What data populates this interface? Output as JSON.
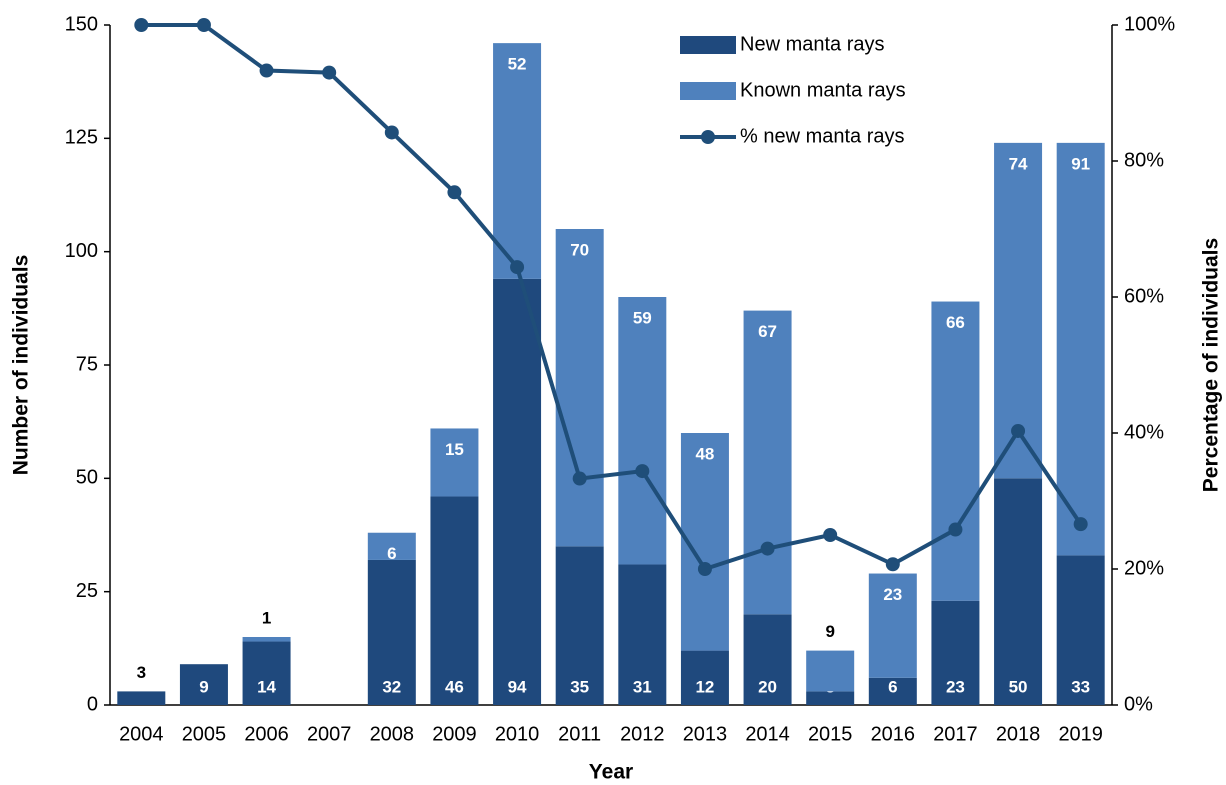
{
  "chart_data": {
    "type": "bar",
    "xlabel": "Year",
    "ylabel": "Number of individuals",
    "y2label": "Percentage of individuals",
    "categories": [
      "2004",
      "2005",
      "2006",
      "2007",
      "2008",
      "2009",
      "2010",
      "2011",
      "2012",
      "2013",
      "2014",
      "2015",
      "2016",
      "2017",
      "2018",
      "2019"
    ],
    "stacked": true,
    "series": [
      {
        "name": "New manta rays",
        "color": "#1f497d",
        "type": "bar",
        "values": [
          3,
          9,
          14,
          null,
          32,
          46,
          94,
          35,
          31,
          12,
          20,
          3,
          6,
          23,
          50,
          33
        ]
      },
      {
        "name": "Known manta rays",
        "color": "#4f81bd",
        "type": "bar",
        "values": [
          null,
          null,
          1,
          null,
          6,
          15,
          52,
          70,
          59,
          48,
          67,
          9,
          23,
          66,
          74,
          91
        ]
      },
      {
        "name": "% new manta rays",
        "color": "#1f4e79",
        "type": "line",
        "axis": "y2",
        "values": [
          100,
          100,
          93.3,
          93,
          84.2,
          75.4,
          64.4,
          33.3,
          34.4,
          20,
          23,
          25,
          20.7,
          25.8,
          40.3,
          26.6
        ]
      }
    ],
    "ylim": [
      0,
      150
    ],
    "yticks": [
      0,
      25,
      50,
      75,
      100,
      125,
      150
    ],
    "y2lim": [
      0,
      100
    ],
    "y2ticks": [
      {
        "value": 0,
        "label": "0%"
      },
      {
        "value": 20,
        "label": "20%"
      },
      {
        "value": 40,
        "label": "40%"
      },
      {
        "value": 60,
        "label": "60%"
      },
      {
        "value": 80,
        "label": "80%"
      },
      {
        "value": 100,
        "label": "100%"
      }
    ],
    "legend": "top-right"
  }
}
